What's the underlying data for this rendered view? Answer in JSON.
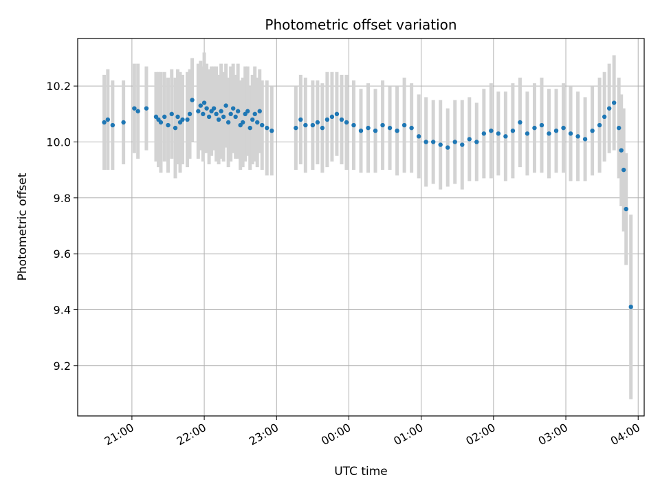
{
  "chart_data": {
    "type": "scatter",
    "title": "Photometric offset variation",
    "xlabel": "UTC time",
    "ylabel": "Photometric offset",
    "x_ticks": [
      "21:00",
      "22:00",
      "23:00",
      "00:00",
      "01:00",
      "02:00",
      "03:00",
      "04:00"
    ],
    "y_ticks": [
      "9.2",
      "9.4",
      "9.6",
      "9.8",
      "10.0",
      "10.2"
    ],
    "ylim": [
      9.02,
      10.37
    ],
    "grid": true,
    "marker_color": "#1f77b4",
    "errorbar_color": "#d3d3d3",
    "series": [
      {
        "x": [
          "20:37",
          "20:40",
          "20:44",
          "20:53",
          "21:02",
          "21:05",
          "21:12",
          "21:20",
          "21:22",
          "21:24",
          "21:27",
          "21:30",
          "21:33",
          "21:36",
          "21:38",
          "21:40",
          "21:42",
          "21:46",
          "21:48",
          "21:50",
          "21:55",
          "21:57",
          "21:59",
          "22:00",
          "22:02",
          "22:04",
          "22:06",
          "22:08",
          "22:10",
          "22:12",
          "22:14",
          "22:16",
          "22:18",
          "22:20",
          "22:22",
          "22:24",
          "22:26",
          "22:28",
          "22:30",
          "22:32",
          "22:34",
          "22:36",
          "22:38",
          "22:40",
          "22:42",
          "22:44",
          "22:46",
          "22:48",
          "22:52",
          "22:56",
          "23:16",
          "23:20",
          "23:24",
          "23:30",
          "23:34",
          "23:38",
          "23:42",
          "23:46",
          "23:50",
          "23:54",
          "23:58",
          "00:04",
          "00:10",
          "00:16",
          "00:22",
          "00:28",
          "00:34",
          "00:40",
          "00:46",
          "00:52",
          "00:58",
          "01:04",
          "01:10",
          "01:16",
          "01:22",
          "01:28",
          "01:34",
          "01:40",
          "01:46",
          "01:52",
          "01:58",
          "02:04",
          "02:10",
          "02:16",
          "02:22",
          "02:28",
          "02:34",
          "02:40",
          "02:46",
          "02:52",
          "02:58",
          "03:04",
          "03:10",
          "03:16",
          "03:22",
          "03:28",
          "03:32",
          "03:36",
          "03:40",
          "03:44",
          "03:46",
          "03:48",
          "03:50",
          "03:54"
        ],
        "y": [
          10.07,
          10.08,
          10.06,
          10.07,
          10.12,
          10.11,
          10.12,
          10.09,
          10.08,
          10.07,
          10.09,
          10.06,
          10.1,
          10.05,
          10.09,
          10.07,
          10.08,
          10.08,
          10.1,
          10.15,
          10.11,
          10.13,
          10.1,
          10.14,
          10.12,
          10.09,
          10.11,
          10.12,
          10.1,
          10.08,
          10.11,
          10.09,
          10.13,
          10.07,
          10.1,
          10.12,
          10.09,
          10.11,
          10.06,
          10.07,
          10.1,
          10.11,
          10.05,
          10.08,
          10.1,
          10.07,
          10.11,
          10.06,
          10.05,
          10.04,
          10.05,
          10.08,
          10.06,
          10.06,
          10.07,
          10.05,
          10.08,
          10.09,
          10.1,
          10.08,
          10.07,
          10.06,
          10.04,
          10.05,
          10.04,
          10.06,
          10.05,
          10.04,
          10.06,
          10.05,
          10.02,
          10.0,
          10.0,
          9.99,
          9.98,
          10.0,
          9.99,
          10.01,
          10.0,
          10.03,
          10.04,
          10.03,
          10.02,
          10.04,
          10.07,
          10.03,
          10.05,
          10.06,
          10.03,
          10.04,
          10.05,
          10.03,
          10.02,
          10.01,
          10.04,
          10.06,
          10.09,
          10.12,
          10.14,
          10.05,
          9.97,
          9.9,
          9.76,
          9.41
        ],
        "yerr": [
          0.17,
          0.18,
          0.16,
          0.15,
          0.16,
          0.17,
          0.15,
          0.16,
          0.17,
          0.18,
          0.16,
          0.17,
          0.16,
          0.18,
          0.17,
          0.18,
          0.16,
          0.17,
          0.16,
          0.15,
          0.17,
          0.16,
          0.17,
          0.18,
          0.16,
          0.17,
          0.16,
          0.15,
          0.17,
          0.16,
          0.17,
          0.16,
          0.15,
          0.16,
          0.17,
          0.16,
          0.15,
          0.17,
          0.16,
          0.16,
          0.17,
          0.16,
          0.15,
          0.16,
          0.17,
          0.16,
          0.15,
          0.16,
          0.17,
          0.16,
          0.15,
          0.16,
          0.17,
          0.16,
          0.15,
          0.16,
          0.17,
          0.16,
          0.15,
          0.16,
          0.17,
          0.16,
          0.15,
          0.16,
          0.15,
          0.16,
          0.15,
          0.16,
          0.17,
          0.16,
          0.15,
          0.16,
          0.15,
          0.16,
          0.14,
          0.15,
          0.16,
          0.15,
          0.14,
          0.16,
          0.17,
          0.15,
          0.16,
          0.17,
          0.16,
          0.15,
          0.16,
          0.17,
          0.16,
          0.15,
          0.16,
          0.17,
          0.16,
          0.15,
          0.16,
          0.17,
          0.16,
          0.16,
          0.17,
          0.18,
          0.2,
          0.22,
          0.2,
          0.33
        ]
      }
    ]
  }
}
